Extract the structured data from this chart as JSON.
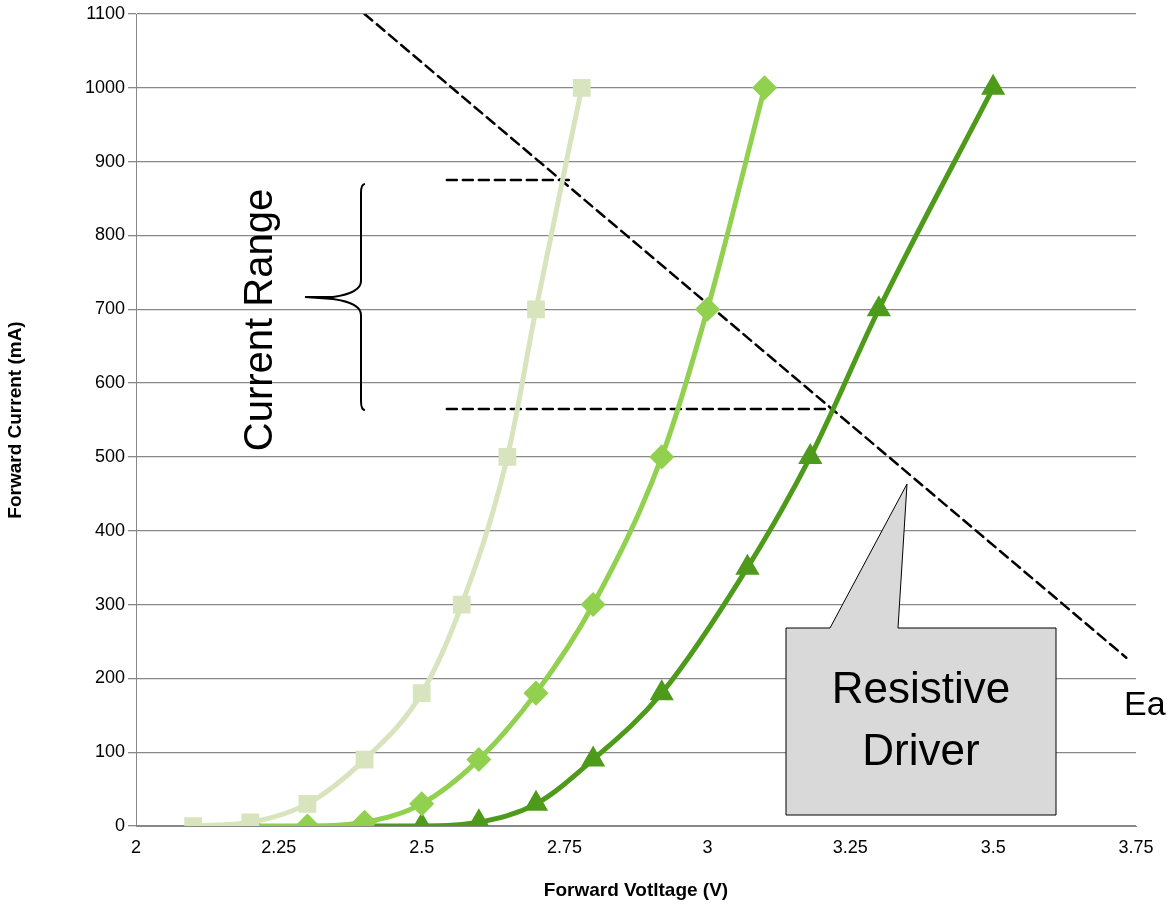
{
  "chart_data": {
    "type": "line",
    "xlabel": "Forward Votltage (V)",
    "ylabel": "Forward Current (mA)",
    "xlim": [
      2,
      3.75
    ],
    "xticks": [
      2,
      2.25,
      2.5,
      2.75,
      3,
      3.25,
      3.5,
      3.75
    ],
    "ylim": [
      0,
      1100
    ],
    "yticks": [
      0,
      100,
      200,
      300,
      400,
      500,
      600,
      700,
      800,
      900,
      1000,
      1100
    ],
    "grid": "y",
    "legend": false,
    "series": [
      {
        "color": "#d7e4bd",
        "marker": "square",
        "x": [
          2.1,
          2.2,
          2.3,
          2.4,
          2.5,
          2.57,
          2.65,
          2.7,
          2.78
        ],
        "values": [
          0,
          5,
          30,
          90,
          180,
          300,
          500,
          700,
          1000
        ]
      },
      {
        "color": "#92d050",
        "marker": "diamond",
        "x": [
          2.2,
          2.3,
          2.4,
          2.5,
          2.6,
          2.7,
          2.8,
          2.92,
          3.0,
          3.1
        ],
        "values": [
          0,
          0,
          5,
          30,
          90,
          180,
          300,
          500,
          700,
          1000
        ]
      },
      {
        "color": "#4e9a1a",
        "marker": "triangle",
        "x": [
          2.4,
          2.5,
          2.6,
          2.7,
          2.8,
          2.92,
          3.07,
          3.18,
          3.3,
          3.5
        ],
        "values": [
          0,
          0,
          5,
          30,
          90,
          180,
          350,
          500,
          700,
          1000
        ]
      },
      {
        "color": "#000000",
        "marker": "none",
        "line_style": "dashed",
        "x": [
          2.4,
          3.733
        ],
        "values": [
          1100,
          228
        ]
      },
      {
        "color": "#000000",
        "marker": "none",
        "line_style": "dashed",
        "x": [
          2.544,
          2.765
        ],
        "values": [
          875,
          875
        ]
      },
      {
        "color": "#000000",
        "marker": "none",
        "line_style": "dashed",
        "x": [
          2.544,
          3.22
        ],
        "values": [
          565,
          565
        ]
      }
    ],
    "annotations": [
      "Current Range",
      "Resistive Driver",
      "Ea"
    ]
  }
}
